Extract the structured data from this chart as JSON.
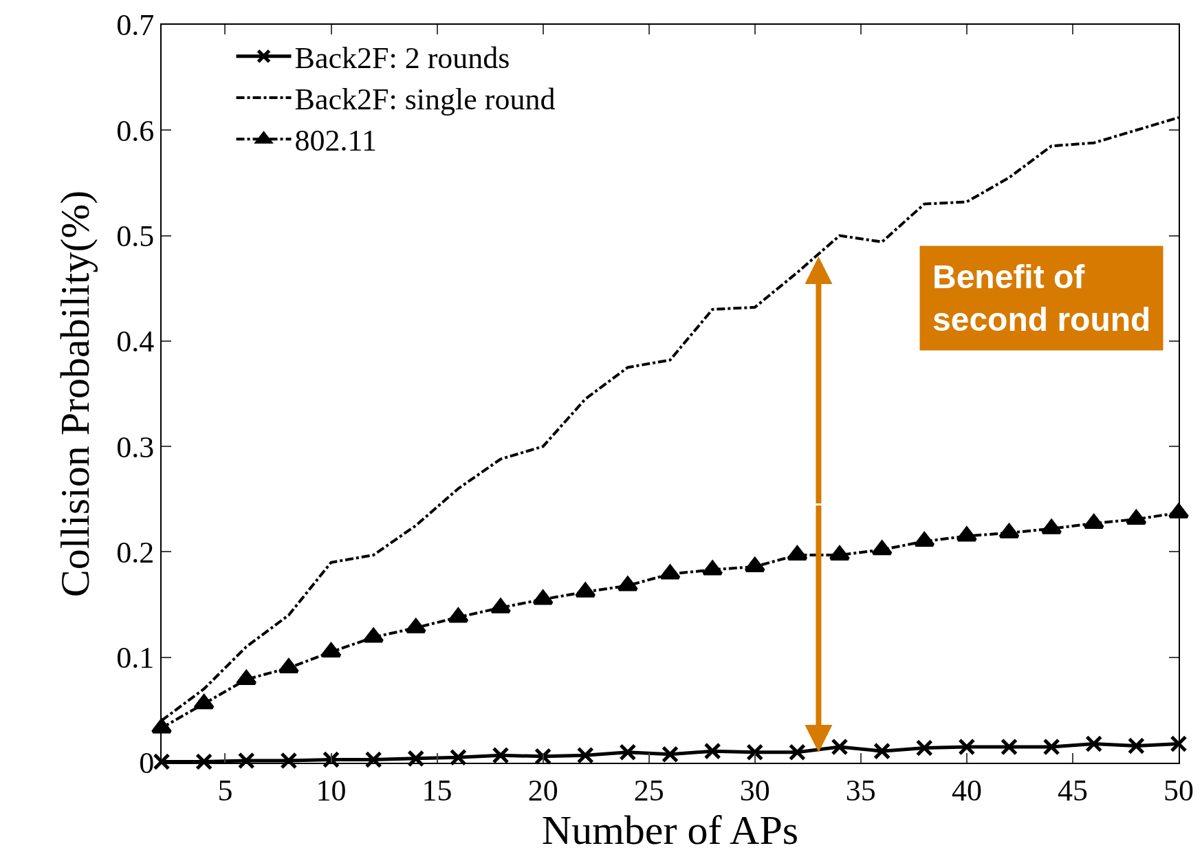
{
  "chart_data": {
    "type": "line",
    "xlabel": "Number of APs",
    "ylabel": "Collision Probability(%)",
    "x": [
      2,
      4,
      6,
      8,
      10,
      12,
      14,
      16,
      18,
      20,
      22,
      24,
      26,
      28,
      30,
      32,
      34,
      36,
      38,
      40,
      42,
      44,
      46,
      48,
      50
    ],
    "series": [
      {
        "name": "Back2F: 2 rounds",
        "color": "#000000",
        "marker": "cross",
        "line_style": "solid",
        "values": [
          0.001,
          0.001,
          0.002,
          0.002,
          0.003,
          0.003,
          0.004,
          0.005,
          0.007,
          0.006,
          0.007,
          0.01,
          0.008,
          0.011,
          0.01,
          0.01,
          0.015,
          0.011,
          0.014,
          0.015,
          0.015,
          0.015,
          0.018,
          0.016,
          0.018
        ]
      },
      {
        "name": "Back2F: single round",
        "color": "#000000",
        "marker": "none",
        "line_style": "dashdot",
        "values": [
          0.04,
          0.07,
          0.11,
          0.14,
          0.19,
          0.197,
          0.225,
          0.26,
          0.288,
          0.3,
          0.345,
          0.375,
          0.382,
          0.43,
          0.432,
          0.465,
          0.5,
          0.494,
          0.53,
          0.532,
          0.555,
          0.585,
          0.588,
          0.6,
          0.612
        ]
      },
      {
        "name": "802.11",
        "color": "#000000",
        "marker": "triangle",
        "line_style": "dashdot",
        "values": [
          0.033,
          0.056,
          0.079,
          0.09,
          0.105,
          0.119,
          0.128,
          0.138,
          0.147,
          0.155,
          0.162,
          0.168,
          0.179,
          0.183,
          0.186,
          0.197,
          0.197,
          0.202,
          0.21,
          0.215,
          0.218,
          0.222,
          0.227,
          0.231,
          0.237
        ]
      }
    ],
    "xlim": [
      2,
      50
    ],
    "xticks": [
      5,
      10,
      15,
      20,
      25,
      30,
      35,
      40,
      45,
      50
    ],
    "ylim": [
      0,
      0.7
    ],
    "yticks": [
      0,
      0.1,
      0.2,
      0.3,
      0.4,
      0.5,
      0.6,
      0.7
    ],
    "legend": "top left",
    "annotations": [
      "Benefit of\nsecond round"
    ]
  }
}
